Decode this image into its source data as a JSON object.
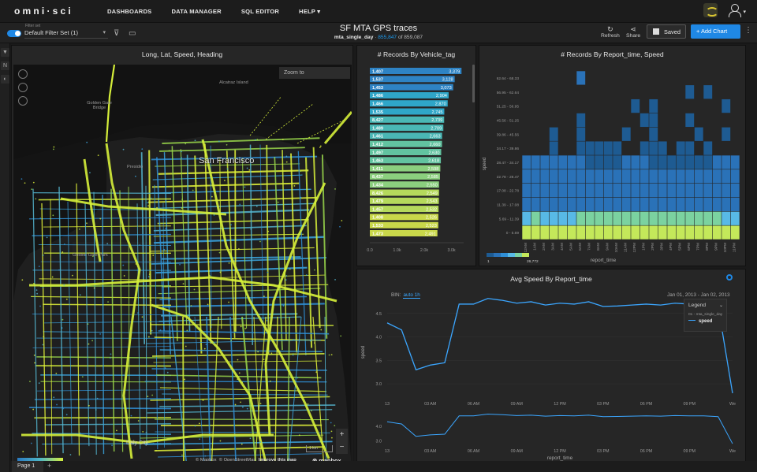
{
  "nav": {
    "logo": "omni·sci",
    "items": [
      "DASHBOARDS",
      "DATA MANAGER",
      "SQL EDITOR",
      "HELP ▾"
    ]
  },
  "toolbar": {
    "filter_caption": "Filter set",
    "filter_set_value": "Default Filter Set",
    "filter_set_count": "(1)",
    "dashboard_title": "SF MTA GPS traces",
    "table_name": "mta_single_day",
    "filtered_count": "855,847",
    "total_text": "of 859,087",
    "refresh_label": "Refresh",
    "share_label": "Share",
    "saved_label": "Saved",
    "add_chart_label": "+  Add Chart"
  },
  "map_panel": {
    "title": "Long, Lat, Speed, Heading",
    "zoom_placeholder": "Zoom to",
    "labels": {
      "alcatraz": "Alcatraz Island",
      "golden_gate": "Golden Gate Bridge",
      "presidio": "Presidio",
      "sf": "San Francisco",
      "ggpark": "Golden Gate Park",
      "daly": "Daly City"
    },
    "scale_label": "1 km",
    "attribution": [
      "© Mapbox",
      "© OpenStreetMap",
      "Improve this map"
    ],
    "mapbox_label": "⊗ mapbox",
    "legend_min": "1",
    "legend_max": "15",
    "page_tab": "Page 1"
  },
  "bar_panel": {
    "title": "# Records By Vehicle_tag",
    "chart_data": {
      "type": "bar",
      "orientation": "horizontal",
      "categories": [
        "1,407",
        "1,537",
        "1,453",
        "1,486",
        "1,466",
        "1,535",
        "8,427",
        "1,489",
        "1,461",
        "1,412",
        "1,497",
        "1,463",
        "1,411",
        "8,437",
        "1,434",
        "8,426",
        "1,479",
        "1,457",
        "1,408",
        "1,533",
        "1,473"
      ],
      "values": [
        3379,
        3128,
        3073,
        2904,
        2870,
        2745,
        2739,
        2709,
        2663,
        2660,
        2630,
        2618,
        2598,
        2585,
        2550,
        2549,
        2543,
        2532,
        2526,
        2523,
        2491
      ],
      "value_labels": [
        "3,379",
        "3,128",
        "3,073",
        "2,904",
        "2,870",
        "2,745",
        "2,739",
        "2,709",
        "2,663",
        "2,660",
        "2,630",
        "2,618",
        "2,598",
        "2,585",
        "2,550",
        "2,549",
        "2,543",
        "2,532",
        "2,526",
        "2,523",
        "2,491"
      ],
      "xticks": [
        "0.0",
        "1.0k",
        "2.0k",
        "3.0k"
      ],
      "xlim": [
        0,
        3400
      ],
      "colors": [
        "#2e83c4",
        "#2fa6c8",
        "#4ab7b5",
        "#62c3a0",
        "#8bcf7e",
        "#b5d95c",
        "#c9d84a"
      ]
    }
  },
  "heat_panel": {
    "title": "# Records By Report_time, Speed",
    "chart_data": {
      "type": "heatmap",
      "ylabel": "speed",
      "xlabel": "report_time",
      "y_categories": [
        "0 - 5.69",
        "5.69 - 11.39",
        "11.39 - 17.08",
        "17.08 - 22.78",
        "22.78 - 28.47",
        "28.47 - 34.17",
        "34.17 - 39.86",
        "39.86 - 45.56",
        "45.56 - 51.25",
        "51.25 - 56.95",
        "56.95 - 62.64",
        "62.64 - 68.33"
      ],
      "x_categories": [
        "12AM",
        "1AM",
        "2AM",
        "3AM",
        "4AM",
        "5AM",
        "6AM",
        "7AM",
        "8AM",
        "9AM",
        "10AM",
        "11AM",
        "12PM",
        "1PM",
        "2PM",
        "3PM",
        "4PM",
        "5PM",
        "6PM",
        "7PM",
        "8PM",
        "9PM",
        "10PM",
        "11PM"
      ],
      "legend_min": "1",
      "legend_max": "26,772",
      "colors": [
        "#1e5b92",
        "#2a72b8",
        "#2f8fd6",
        "#58b9e6",
        "#7bd2a0",
        "#c4e85a"
      ]
    }
  },
  "line_panel": {
    "title": "Avg Speed By Report_time",
    "bin_label": "BIN:",
    "bin_value": "auto  1h",
    "date_range": "Jan 01, 2013 - Jan 02, 2013",
    "legend_title": "Legend",
    "legend_source": "01 - mta_single_day",
    "legend_series": "speed",
    "chart_data": {
      "type": "line",
      "ylabel": "speed",
      "xlabel": "report_time",
      "x": [
        "13",
        "01 AM",
        "02 AM",
        "03 AM",
        "04 AM",
        "05 AM",
        "06 AM",
        "07 AM",
        "08 AM",
        "09 AM",
        "10 AM",
        "11 AM",
        "12 PM",
        "01 PM",
        "02 PM",
        "03 PM",
        "04 PM",
        "05 PM",
        "06 PM",
        "07 PM",
        "08 PM",
        "09 PM",
        "10 PM",
        "11 PM",
        "Wed"
      ],
      "xticks": [
        "13",
        "03 AM",
        "06 AM",
        "09 AM",
        "12 PM",
        "03 PM",
        "06 PM",
        "09 PM",
        "We"
      ],
      "yticks": [
        "3.0",
        "3.5",
        "4.0",
        "4.5"
      ],
      "ylim": [
        2.75,
        4.85
      ],
      "series": [
        {
          "name": "speed",
          "values": [
            4.3,
            4.15,
            3.3,
            3.4,
            3.45,
            4.7,
            4.7,
            4.82,
            4.78,
            4.72,
            4.75,
            4.68,
            4.72,
            4.7,
            4.75,
            4.65,
            4.66,
            4.68,
            4.7,
            4.68,
            4.72,
            4.7,
            4.7,
            4.65,
            2.8
          ]
        }
      ],
      "brush_yticks": [
        "3.0",
        "4.0"
      ]
    }
  }
}
